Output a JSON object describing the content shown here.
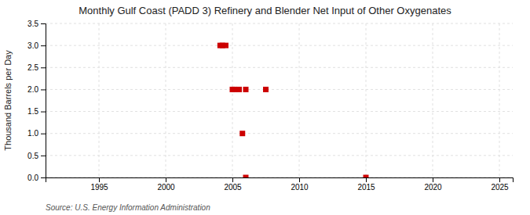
{
  "chart_data": {
    "type": "scatter",
    "title": "Monthly Gulf Coast (PADD 3) Refinery and Blender Net Input of Other Oxygenates",
    "ylabel": "Thousand Barrels per Day",
    "annotations": [
      "Source: U.S. Energy Information Administration"
    ],
    "x": [
      2004.08,
      2004.25,
      2004.5,
      2005.0,
      2005.17,
      2005.5,
      2006.0,
      2007.5,
      2005.75,
      2006.0,
      2015.0
    ],
    "values": [
      3.0,
      3.0,
      3.0,
      2.0,
      2.0,
      2.0,
      2.0,
      2.0,
      1.0,
      0.0,
      0.0
    ],
    "color": "#cc0000",
    "marker": "square",
    "xlim": [
      1991,
      2026
    ],
    "ylim": [
      0.0,
      3.5
    ],
    "xticks": [
      1995,
      2000,
      2005,
      2010,
      2015,
      2020,
      2025
    ],
    "yticks": [
      {
        "value": 0.0,
        "label": "0.0"
      },
      0.5,
      {
        "value": 1.0,
        "label": "1.0"
      },
      1.5,
      {
        "value": 2.0,
        "label": "2.0"
      },
      2.5,
      {
        "value": 3.0,
        "label": "3.0"
      },
      3.5
    ],
    "grid": true
  }
}
